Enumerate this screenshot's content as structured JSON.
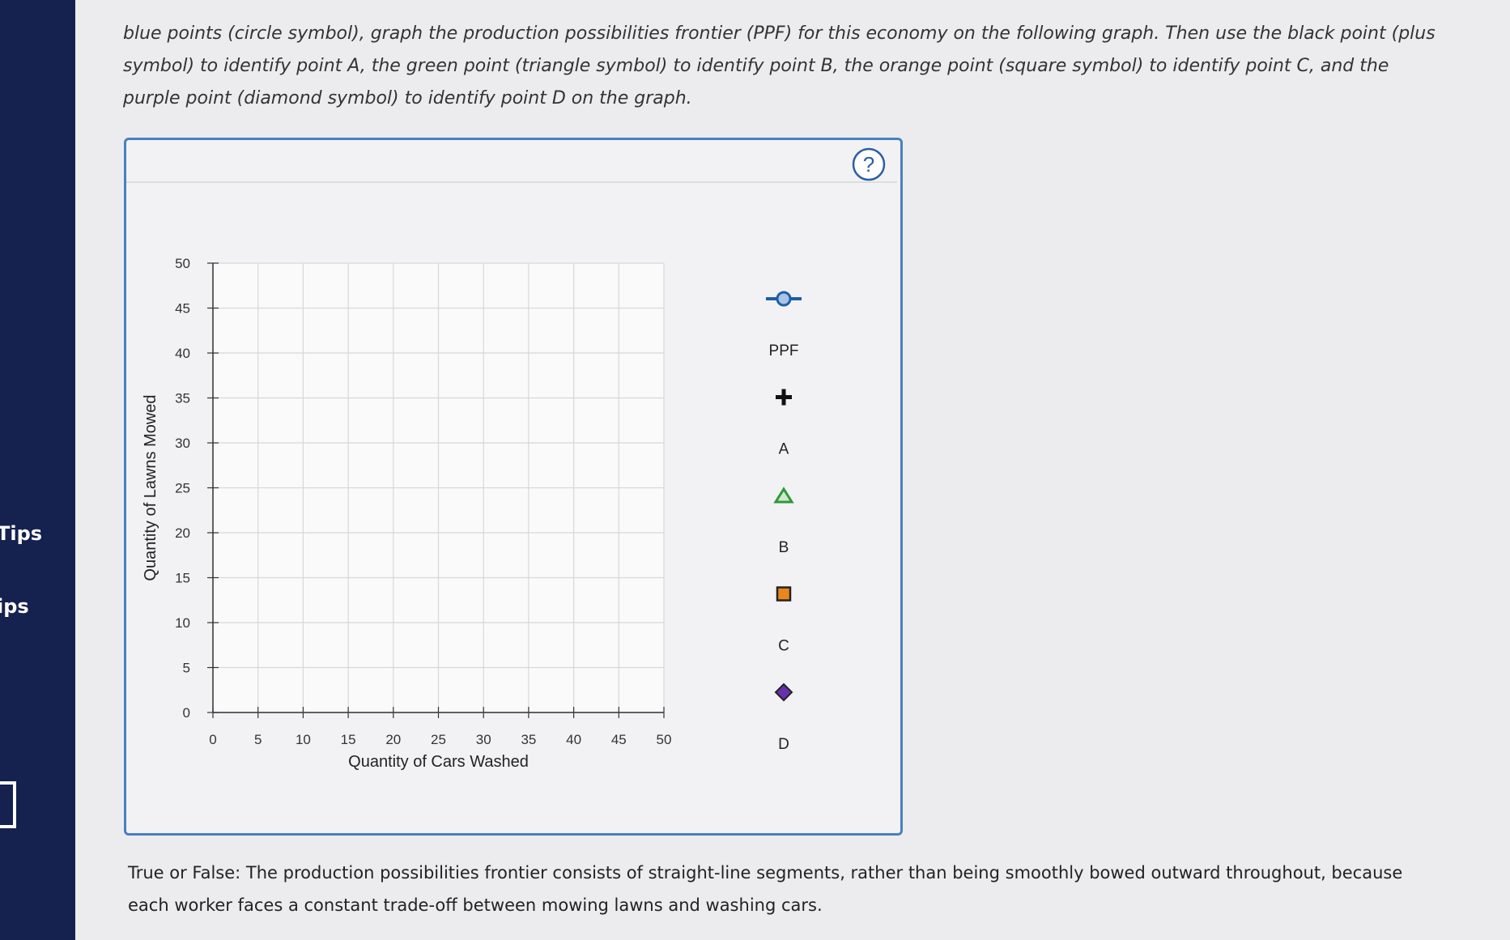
{
  "sidebar": {
    "items": [
      "Tips",
      "ips"
    ]
  },
  "instructions": "blue points (circle symbol), graph the production possibilities frontier (PPF) for this economy on the following graph. Then use the black point (plus symbol) to identify point A, the green point (triangle symbol) to identify point B, the orange point (square symbol) to identify point C, and the purple point (diamond symbol) to identify point D on the graph.",
  "help_icon": "?",
  "chart_data": {
    "type": "scatter",
    "xlabel": "Quantity of Cars Washed",
    "ylabel": "Quantity of Lawns Mowed",
    "xlim": [
      0,
      50
    ],
    "ylim": [
      0,
      50
    ],
    "xticks": [
      0,
      5,
      10,
      15,
      20,
      25,
      30,
      35,
      40,
      45,
      50
    ],
    "yticks": [
      0,
      5,
      10,
      15,
      20,
      25,
      30,
      35,
      40,
      45,
      50
    ],
    "grid": true,
    "tools": [
      {
        "label": "PPF",
        "symbol": "circle",
        "color": "#1f5fa8"
      },
      {
        "label": "A",
        "symbol": "plus",
        "color": "#111111"
      },
      {
        "label": "B",
        "symbol": "triangle",
        "color": "#2e9a3a"
      },
      {
        "label": "C",
        "symbol": "square",
        "color": "#e8861c"
      },
      {
        "label": "D",
        "symbol": "diamond",
        "color": "#6a2fb0"
      }
    ]
  },
  "question": "True or False: The production possibilities frontier consists of straight-line segments, rather than being smoothly bowed outward throughout, because each worker faces a constant trade-off between mowing lawns and washing cars."
}
